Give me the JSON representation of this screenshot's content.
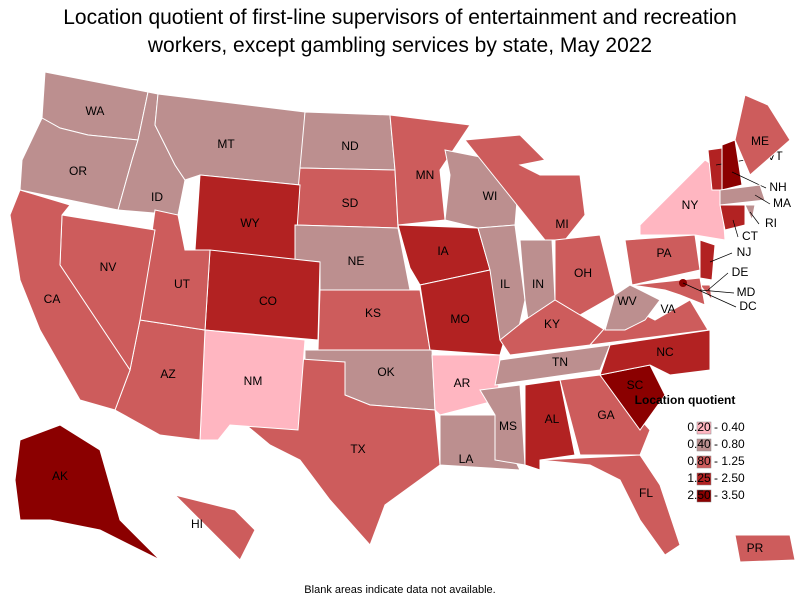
{
  "title": "Location quotient of first-line supervisors of entertainment and recreation workers, except gambling services by state, May 2022",
  "legend": {
    "title": "Location quotient",
    "items": [
      {
        "label": "0.20 - 0.40",
        "color": "#ffb6c1"
      },
      {
        "label": "0.40 - 0.80",
        "color": "#bc8f8f"
      },
      {
        "label": "0.80 - 1.25",
        "color": "#cd5c5c"
      },
      {
        "label": "1.25 - 2.50",
        "color": "#b22222"
      },
      {
        "label": "2.50 - 3.50",
        "color": "#8b0000"
      }
    ]
  },
  "states": [
    {
      "label": "WA",
      "color": "#bc8f8f"
    },
    {
      "label": "OR",
      "color": "#bc8f8f"
    },
    {
      "label": "ID",
      "color": "#bc8f8f"
    },
    {
      "label": "MT",
      "color": "#bc8f8f"
    },
    {
      "label": "ND",
      "color": "#bc8f8f"
    },
    {
      "label": "SD",
      "color": "#cd5c5c"
    },
    {
      "label": "WY",
      "color": "#b22222"
    },
    {
      "label": "NE",
      "color": "#bc8f8f"
    },
    {
      "label": "CO",
      "color": "#b22222"
    },
    {
      "label": "KS",
      "color": "#cd5c5c"
    },
    {
      "label": "OK",
      "color": "#bc8f8f"
    },
    {
      "label": "TX",
      "color": "#cd5c5c"
    },
    {
      "label": "NM",
      "color": "#ffb6c1"
    },
    {
      "label": "AZ",
      "color": "#cd5c5c"
    },
    {
      "label": "UT",
      "color": "#cd5c5c"
    },
    {
      "label": "NV",
      "color": "#cd5c5c"
    },
    {
      "label": "CA",
      "color": "#cd5c5c"
    },
    {
      "label": "MN",
      "color": "#cd5c5c"
    },
    {
      "label": "IA",
      "color": "#b22222"
    },
    {
      "label": "MO",
      "color": "#b22222"
    },
    {
      "label": "AR",
      "color": "#ffb6c1"
    },
    {
      "label": "LA",
      "color": "#bc8f8f"
    },
    {
      "label": "WI",
      "color": "#bc8f8f"
    },
    {
      "label": "IL",
      "color": "#bc8f8f"
    },
    {
      "label": "IN",
      "color": "#bc8f8f"
    },
    {
      "label": "MI",
      "color": "#cd5c5c"
    },
    {
      "label": "OH",
      "color": "#cd5c5c"
    },
    {
      "label": "KY",
      "color": "#cd5c5c"
    },
    {
      "label": "TN",
      "color": "#bc8f8f"
    },
    {
      "label": "MS",
      "color": "#bc8f8f"
    },
    {
      "label": "AL",
      "color": "#b22222"
    },
    {
      "label": "GA",
      "color": "#cd5c5c"
    },
    {
      "label": "FL",
      "color": "#cd5c5c"
    },
    {
      "label": "SC",
      "color": "#8b0000"
    },
    {
      "label": "NC",
      "color": "#b22222"
    },
    {
      "label": "VA",
      "color": "#cd5c5c"
    },
    {
      "label": "WV",
      "color": "#bc8f8f"
    },
    {
      "label": "PA",
      "color": "#cd5c5c"
    },
    {
      "label": "NY",
      "color": "#ffb6c1"
    },
    {
      "label": "NJ",
      "color": "#b22222"
    },
    {
      "label": "DE",
      "color": "#cd5c5c"
    },
    {
      "label": "MD",
      "color": "#cd5c5c"
    },
    {
      "label": "VT",
      "color": "#b22222"
    },
    {
      "label": "NH",
      "color": "#8b0000"
    },
    {
      "label": "ME",
      "color": "#cd5c5c"
    },
    {
      "label": "MA",
      "color": "#bc8f8f"
    },
    {
      "label": "CT",
      "color": "#b22222"
    },
    {
      "label": "RI",
      "color": "#bc8f8f"
    },
    {
      "label": "AK",
      "color": "#8b0000"
    },
    {
      "label": "HI",
      "color": "#cd5c5c"
    },
    {
      "label": "PR",
      "color": "#cd5c5c"
    },
    {
      "label": "DC",
      "color": "#8b0000"
    }
  ],
  "note": "Blank areas indicate data not available."
}
